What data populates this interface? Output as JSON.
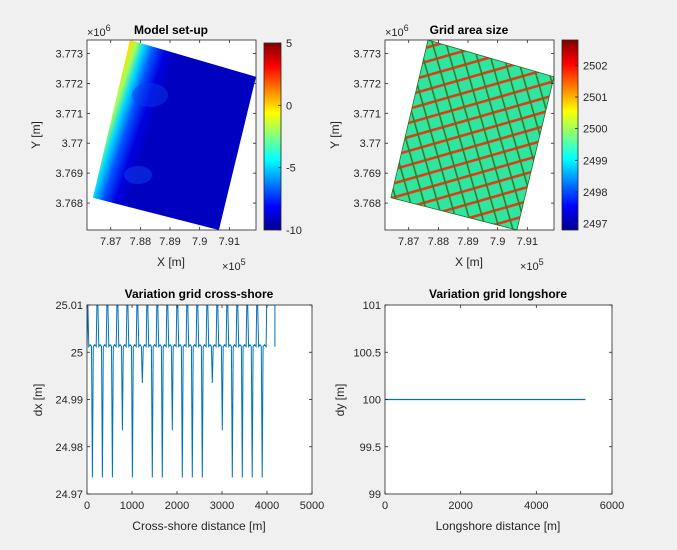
{
  "chart_data": [
    {
      "type": "heatmap",
      "title": "Model set-up",
      "xlabel": "X [m]",
      "ylabel": "Y [m]",
      "x_ticks": [
        "7.87",
        "7.88",
        "7.89",
        "7.9",
        "7.91"
      ],
      "x_tick_values": [
        787000,
        788000,
        789000,
        790000,
        791000
      ],
      "x_exponent": "×10",
      "x_exponent_power": "5",
      "xlim": [
        786200,
        791900
      ],
      "y_ticks": [
        "3.768",
        "3.769",
        "3.77",
        "3.771",
        "3.772",
        "3.773"
      ],
      "y_tick_values": [
        3768000,
        3769000,
        3770000,
        3771000,
        3772000,
        3773000
      ],
      "y_exponent": "×10",
      "y_exponent_power": "6",
      "ylim": [
        3767100,
        3773450
      ],
      "domain_corners": [
        [
          786400,
          3768180
        ],
        [
          787650,
          3773450
        ],
        [
          791900,
          3772220
        ],
        [
          790650,
          3767100
        ]
      ],
      "colorbar": {
        "ticks": [
          "5",
          "0",
          "-5",
          "-10"
        ],
        "tick_values": [
          5,
          0,
          -5,
          -10
        ],
        "range": [
          -10,
          5
        ],
        "colormap": "jet"
      }
    },
    {
      "type": "heatmap",
      "title": "Grid area size",
      "xlabel": "X [m]",
      "ylabel": "Y [m]",
      "x_ticks": [
        "7.87",
        "7.88",
        "7.89",
        "7.9",
        "7.91"
      ],
      "x_tick_values": [
        787000,
        788000,
        789000,
        790000,
        791000
      ],
      "x_exponent": "×10",
      "x_exponent_power": "5",
      "xlim": [
        786200,
        791900
      ],
      "y_ticks": [
        "3.768",
        "3.769",
        "3.77",
        "3.771",
        "3.772",
        "3.773"
      ],
      "y_tick_values": [
        3768000,
        3769000,
        3770000,
        3771000,
        3772000,
        3773000
      ],
      "y_exponent": "×10",
      "y_exponent_power": "6",
      "ylim": [
        3767100,
        3773450
      ],
      "domain_corners": [
        [
          786400,
          3768180
        ],
        [
          787650,
          3773450
        ],
        [
          791900,
          3772220
        ],
        [
          790650,
          3767100
        ]
      ],
      "colorbar": {
        "ticks": [
          "2502",
          "2501",
          "2500",
          "2499",
          "2498",
          "2497"
        ],
        "tick_values": [
          2502,
          2501,
          2500,
          2499,
          2498,
          2497
        ],
        "range": [
          2496.8,
          2502.8
        ],
        "colormap": "jet"
      }
    },
    {
      "type": "line",
      "title": "Variation grid cross-shore",
      "xlabel": "Cross-shore distance [m]",
      "ylabel": "dx [m]",
      "xlim": [
        0,
        5000
      ],
      "ylim": [
        24.97,
        25.01
      ],
      "x_ticks": [
        "0",
        "1000",
        "2000",
        "3000",
        "4000",
        "5000"
      ],
      "y_ticks": [
        "24.97",
        "24.98",
        "24.99",
        "25",
        "25.01"
      ],
      "x_end": 4175,
      "spike_period": 222,
      "spike_low_values": [
        24.9735,
        24.9835,
        24.9935
      ],
      "spike_high": 25.01,
      "plateau": 25.0012,
      "color": "#0072bd"
    },
    {
      "type": "line",
      "title": "Variation grid longshore",
      "xlabel": "Longshore distance [m]",
      "ylabel": "dy [m]",
      "xlim": [
        0,
        6000
      ],
      "ylim": [
        99,
        101
      ],
      "x_ticks": [
        "0",
        "2000",
        "4000",
        "6000"
      ],
      "y_ticks": [
        "99",
        "99.5",
        "100",
        "100.5",
        "101"
      ],
      "x": [
        0,
        5300
      ],
      "y": [
        100,
        100
      ],
      "color": "#0072bd"
    }
  ]
}
